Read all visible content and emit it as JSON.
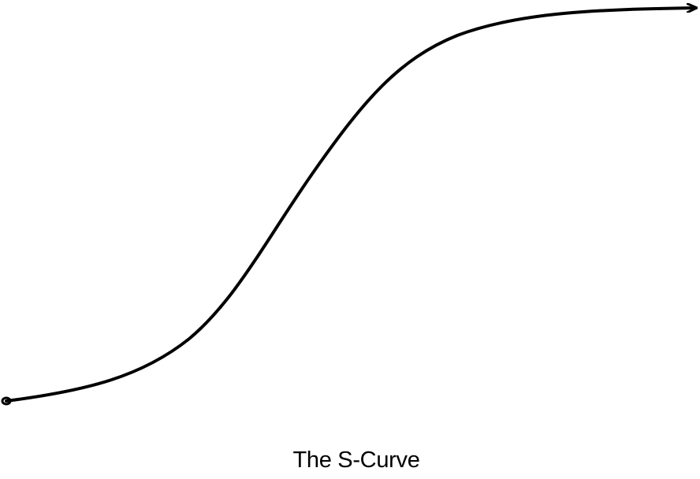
{
  "diagram": {
    "caption": "The S-Curve",
    "curve_color": "#000000",
    "background_color": "#ffffff",
    "start_marker": "circle-dot",
    "end_marker": "arrowhead"
  }
}
